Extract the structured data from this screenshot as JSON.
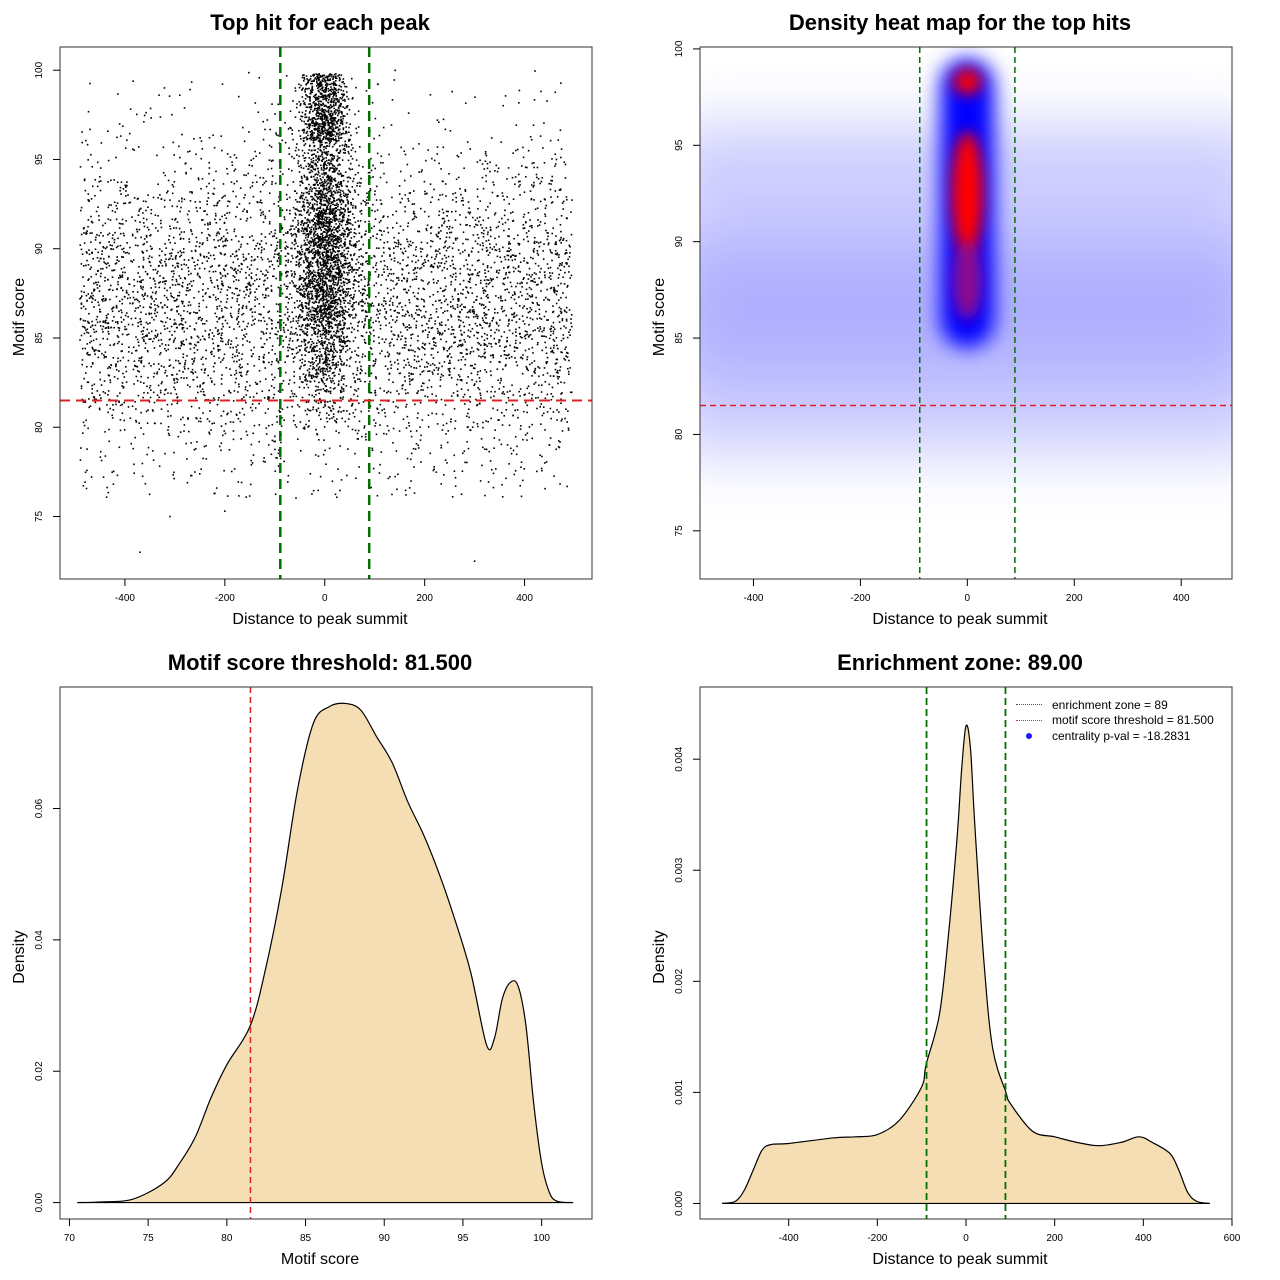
{
  "chart_data": [
    {
      "type": "scatter",
      "title": "Top hit for each peak",
      "xlabel": "Distance to peak summit",
      "ylabel": "Motif score",
      "xlim": [
        -530,
        535
      ],
      "ylim": [
        71.5,
        101.3
      ],
      "xticks": [
        -400,
        -200,
        0,
        200,
        400
      ],
      "yticks": [
        75,
        80,
        85,
        90,
        95,
        100
      ],
      "point_distribution": {
        "background": {
          "x_range": [
            -490,
            495
          ],
          "y_mode": 87,
          "y_sd": 4.5,
          "y_range": [
            76,
            100
          ],
          "approx_points": 5200
        },
        "central_cluster": {
          "x_center": 0,
          "x_sd": 28,
          "y_mode": 90,
          "y_range": [
            80,
            99.8
          ],
          "approx_points": 2600
        },
        "top_cluster": {
          "x_center": 0,
          "x_sd": 22,
          "y_center": 98,
          "y_range": [
            96,
            99.8
          ],
          "approx_points": 650
        }
      },
      "reference_lines": {
        "enrichment_zone": [
          -89,
          89
        ],
        "motif_threshold": 81.5
      },
      "colors": {
        "points": "#000000",
        "enrichment": "#007000",
        "threshold": "#e02020"
      }
    },
    {
      "type": "heatmap",
      "title": "Density heat map for the top hits",
      "xlabel": "Distance to peak summit",
      "ylabel": "Motif score",
      "xlim": [
        -500,
        495
      ],
      "ylim": [
        72.5,
        100.1
      ],
      "xticks": [
        -400,
        -200,
        0,
        200,
        400
      ],
      "yticks": [
        75,
        80,
        85,
        90,
        95,
        100
      ],
      "hotspots": [
        {
          "x": 0,
          "y": 98.3,
          "level": "high"
        },
        {
          "x": 0,
          "y": 92.5,
          "level": "high"
        },
        {
          "x": 0,
          "y": 88,
          "level": "medium"
        }
      ],
      "palette": [
        "#ffffff",
        "#0000ff",
        "#ff0000"
      ],
      "reference_lines": {
        "enrichment_zone": [
          -89,
          89
        ],
        "motif_threshold": 81.5
      }
    },
    {
      "type": "area",
      "title": "Motif score threshold: 81.500",
      "xlabel": "Motif score",
      "ylabel": "Density",
      "xlim": [
        69.4,
        103.2
      ],
      "ylim": [
        -0.0025,
        0.0785
      ],
      "xticks": [
        70,
        75,
        80,
        85,
        90,
        95,
        100
      ],
      "yticks": [
        0.0,
        0.02,
        0.04,
        0.06
      ],
      "ytick_labels": [
        "0.00",
        "0.02",
        "0.04",
        "0.06"
      ],
      "x": [
        70.5,
        72,
        74,
        76,
        77,
        78,
        79,
        80,
        81.5,
        82.5,
        83.5,
        84.5,
        85.5,
        86.5,
        87.5,
        88.5,
        89.5,
        90.5,
        91.5,
        92.5,
        93.5,
        94.5,
        95.5,
        96.5,
        97,
        97.5,
        98,
        98.5,
        99,
        99.5,
        100,
        100.5,
        101,
        102
      ],
      "y": [
        0.0,
        0.0001,
        0.0005,
        0.003,
        0.006,
        0.01,
        0.016,
        0.021,
        0.027,
        0.036,
        0.048,
        0.063,
        0.073,
        0.0755,
        0.076,
        0.075,
        0.071,
        0.067,
        0.061,
        0.056,
        0.05,
        0.043,
        0.035,
        0.024,
        0.025,
        0.031,
        0.0335,
        0.033,
        0.027,
        0.015,
        0.006,
        0.0015,
        0.0002,
        0.0
      ],
      "reference_lines": {
        "motif_threshold": 81.5
      },
      "colors": {
        "fill": "#f5deb3",
        "line": "#000000",
        "threshold": "#e02020"
      }
    },
    {
      "type": "area",
      "title": "Enrichment zone: 89.00",
      "xlabel": "Distance to peak summit",
      "ylabel": "Density",
      "xlim": [
        -600,
        600
      ],
      "ylim": [
        -0.00014,
        0.00465
      ],
      "xticks": [
        -400,
        -200,
        0,
        200,
        400,
        600
      ],
      "yticks": [
        0.0,
        0.001,
        0.002,
        0.003,
        0.004
      ],
      "ytick_labels": [
        "0.000",
        "0.001",
        "0.002",
        "0.003",
        "0.004"
      ],
      "x": [
        -550,
        -520,
        -500,
        -480,
        -460,
        -440,
        -400,
        -300,
        -250,
        -200,
        -150,
        -100,
        -90,
        -60,
        -40,
        -20,
        -10,
        0,
        10,
        20,
        40,
        60,
        90,
        100,
        150,
        200,
        250,
        300,
        350,
        390,
        420,
        460,
        480,
        500,
        520,
        550
      ],
      "y": [
        0.0,
        2e-05,
        0.00012,
        0.0003,
        0.00048,
        0.00053,
        0.00054,
        0.00059,
        0.0006,
        0.00062,
        0.00075,
        0.00105,
        0.00125,
        0.0017,
        0.0024,
        0.0033,
        0.0039,
        0.0043,
        0.0041,
        0.0034,
        0.0022,
        0.0014,
        0.001,
        0.0009,
        0.00065,
        0.0006,
        0.00055,
        0.00052,
        0.00055,
        0.0006,
        0.00055,
        0.00045,
        0.0003,
        0.0001,
        2e-05,
        0.0
      ],
      "reference_lines": {
        "enrichment_zone": [
          -89,
          89
        ]
      },
      "legend": {
        "placement": "top-right",
        "entries": [
          "enrichment zone = 89",
          "motif score threshold = 81.500",
          "centrality p-val = -18.2831"
        ]
      },
      "colors": {
        "fill": "#f5deb3",
        "line": "#000000",
        "enrichment": "#007000",
        "threshold": "#e02020",
        "pval": "#1a1aff"
      }
    }
  ]
}
